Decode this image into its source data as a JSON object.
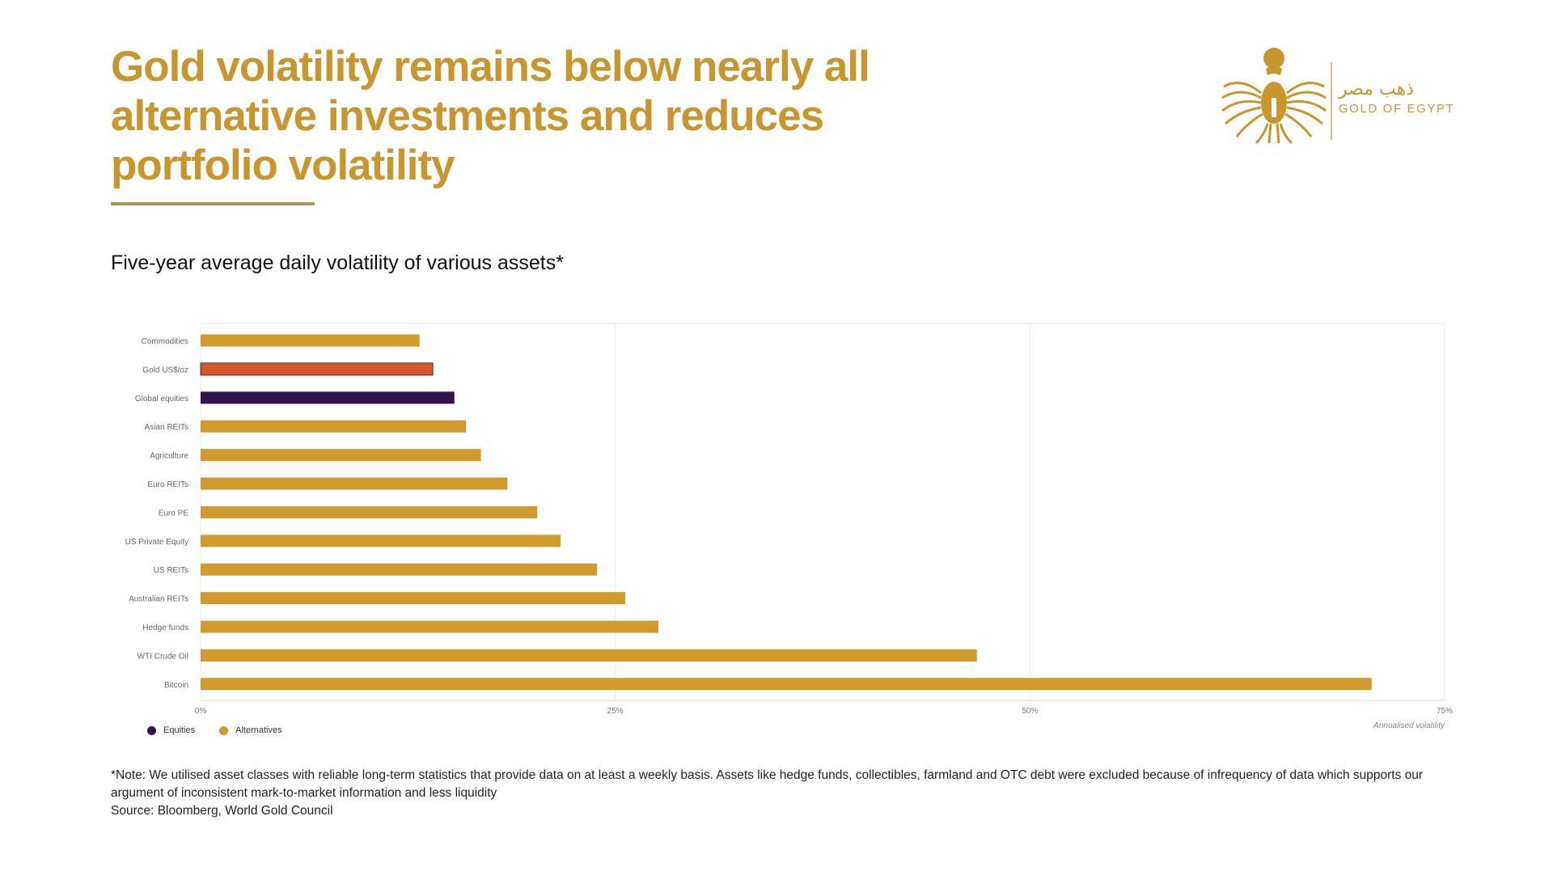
{
  "headline": {
    "lines": [
      "Gold volatility remains below nearly all",
      "alternative investments and reduces",
      "portfolio volatility"
    ]
  },
  "logo": {
    "arabic": "ذهب مصر",
    "latin": "GOLD OF EGYPT",
    "icon": "winged-scarab-icon"
  },
  "subtitle": "Five-year average daily volatility of various assets*",
  "colors": {
    "accent": "#c9962e",
    "alternatives": "#d09a2e",
    "gold": "#d4562a",
    "equities": "#2f1450",
    "rule": "#a8945c"
  },
  "chart_data": {
    "type": "bar",
    "orientation": "horizontal",
    "categories": [
      "Commodities",
      "Gold US$/oz",
      "Global equities",
      "Asian REITs",
      "Agriculture",
      "Euro REITs",
      "Euro PE",
      "US Private Equity",
      "US REITs",
      "Australian REITs",
      "Hedge funds",
      "WTI Crude Oil",
      "Bitcoin"
    ],
    "values": [
      13.2,
      14.0,
      15.3,
      16.0,
      16.9,
      18.5,
      20.3,
      21.7,
      23.9,
      25.6,
      27.6,
      46.8,
      70.6
    ],
    "groups": [
      "Alternatives",
      "Gold",
      "Equities",
      "Alternatives",
      "Alternatives",
      "Alternatives",
      "Alternatives",
      "Alternatives",
      "Alternatives",
      "Alternatives",
      "Alternatives",
      "Alternatives",
      "Alternatives"
    ],
    "xlim": [
      0,
      75
    ],
    "xticks": [
      "0%",
      "25%",
      "50%",
      "75%"
    ],
    "xtick_values": [
      0,
      25,
      50,
      75
    ],
    "xlabel": "Annualised volatility",
    "legend": [
      {
        "name": "Equities",
        "color": "#2f1450"
      },
      {
        "name": "Alternatives",
        "color": "#d09a2e"
      }
    ],
    "legend_position": "bottom-left",
    "grid": true
  },
  "note": {
    "text": "*Note: We utilised asset classes with reliable long-term statistics that provide data on at least a weekly basis. Assets like hedge funds, collectibles, farmland and OTC debt were excluded because of infrequency of data which supports our argument of inconsistent mark-to-market information and less liquidity",
    "source": "Source: Bloomberg, World Gold Council"
  }
}
